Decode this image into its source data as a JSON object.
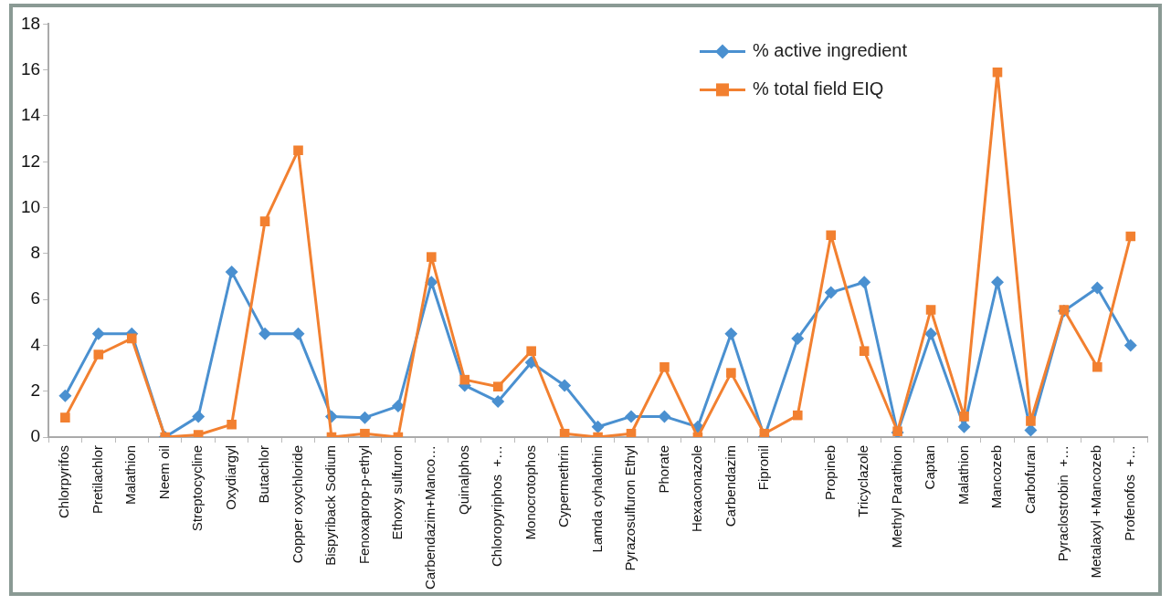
{
  "chart_data": {
    "type": "line",
    "categories": [
      "Chlorpyrifos",
      "Pretilachlor",
      "Malathion",
      "Neem oil",
      "Streptocycline",
      "Oxydiargyl",
      "Butachlor",
      "Copper oxychloride",
      "Bispyriback Sodium",
      "Fenoxaprop-p-ethyl",
      "Ethoxy sulfuron",
      "Carbendazim+Manco…",
      "Quinalphos",
      "Chloropyriphos  +…",
      "Monocrotophos",
      "Cypermethrin",
      "Lamda cyhalothin",
      "Pyrazosulfuron Ethyl",
      "Phorate",
      "Hexaconazole",
      "Carbendazim",
      "Fipronil",
      null,
      "Propineb",
      "Tricyclazole",
      "Methyl Parathion",
      "Captan",
      "Malathion",
      "Mancozeb",
      "Carbofuran",
      "Pyraclostrobin  +…",
      "Metalaxyl +Mancozeb",
      "Profenofos  +…"
    ],
    "series": [
      {
        "name": "% active ingredient",
        "color": "#4a90d0",
        "marker": "diamond",
        "values": [
          1.8,
          4.5,
          4.5,
          0,
          0.9,
          7.2,
          4.5,
          4.5,
          0.9,
          0.85,
          1.35,
          6.75,
          2.25,
          1.55,
          3.25,
          2.25,
          0.45,
          0.9,
          0.9,
          0.45,
          4.5,
          0,
          4.3,
          6.3,
          6.75,
          0.2,
          4.5,
          0.45,
          6.75,
          0.3,
          5.5,
          6.5,
          4.0
        ]
      },
      {
        "name": "% total field EIQ",
        "color": "#f28030",
        "marker": "square",
        "values": [
          0.85,
          3.6,
          4.3,
          0,
          0.1,
          0.55,
          9.4,
          12.5,
          0,
          0.15,
          0,
          7.85,
          2.5,
          2.2,
          3.75,
          0.15,
          0,
          0.15,
          3.05,
          0,
          2.8,
          0.15,
          0.95,
          8.8,
          3.75,
          0.25,
          5.55,
          0.9,
          15.9,
          0.7,
          5.55,
          3.05,
          8.75
        ]
      }
    ],
    "ylim": [
      0,
      18
    ],
    "yticks": [
      0,
      2,
      4,
      6,
      8,
      10,
      12,
      14,
      16,
      18
    ],
    "grid": false,
    "legend": "top right",
    "line_style": "solid"
  }
}
